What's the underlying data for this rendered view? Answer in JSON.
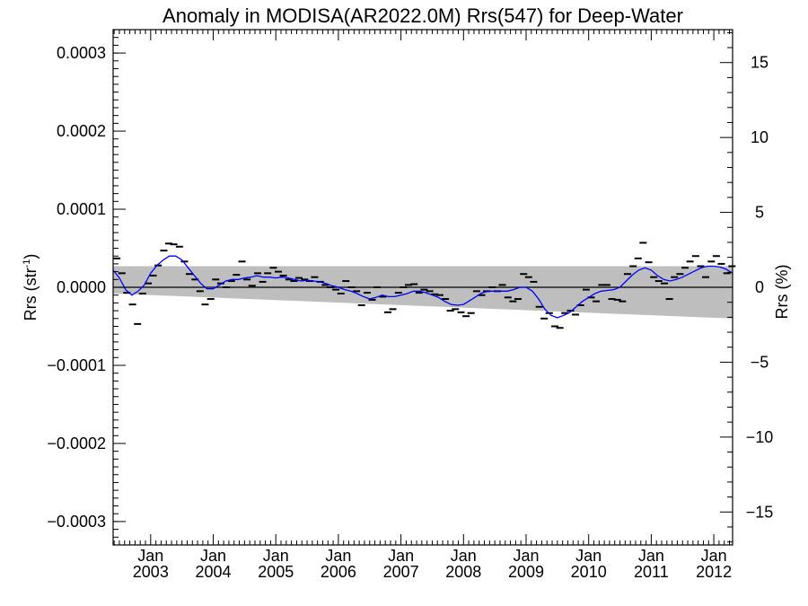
{
  "chart_data": {
    "type": "scatter",
    "title": "Anomaly in MODISA(AR2022.0M) Rrs(547) for Deep-Water",
    "ylabel_left": "Rrs (str",
    "ylabel_left_exp": "-1",
    "ylabel_left_end": ")",
    "ylabel_right": "Rrs (%)",
    "xlabel": "",
    "x_unit": "decimal year",
    "xlim": [
      2002.4,
      2012.3
    ],
    "ylim": [
      -0.00033,
      0.00033
    ],
    "ylim_right": [
      -17.2,
      17.2
    ],
    "grid": false,
    "x_ticks": [
      {
        "x": 2003.0,
        "month": "Jan",
        "year": "2003"
      },
      {
        "x": 2004.0,
        "month": "Jan",
        "year": "2004"
      },
      {
        "x": 2005.0,
        "month": "Jan",
        "year": "2005"
      },
      {
        "x": 2006.0,
        "month": "Jan",
        "year": "2006"
      },
      {
        "x": 2007.0,
        "month": "Jan",
        "year": "2007"
      },
      {
        "x": 2008.0,
        "month": "Jan",
        "year": "2008"
      },
      {
        "x": 2009.0,
        "month": "Jan",
        "year": "2009"
      },
      {
        "x": 2010.0,
        "month": "Jan",
        "year": "2010"
      },
      {
        "x": 2011.0,
        "month": "Jan",
        "year": "2011"
      },
      {
        "x": 2012.0,
        "month": "Jan",
        "year": "2012"
      }
    ],
    "y_ticks_left": [
      {
        "v": 0.0003,
        "label": "0.0003"
      },
      {
        "v": 0.0002,
        "label": "0.0002"
      },
      {
        "v": 0.0001,
        "label": "0.0001"
      },
      {
        "v": 0.0,
        "label": "0.0000"
      },
      {
        "v": -0.0001,
        "label": "−0.0001"
      },
      {
        "v": -0.0002,
        "label": "−0.0002"
      },
      {
        "v": -0.0003,
        "label": "−0.0003"
      }
    ],
    "y_ticks_right": [
      {
        "v": 15,
        "label": "15"
      },
      {
        "v": 10,
        "label": "10"
      },
      {
        "v": 5,
        "label": "5"
      },
      {
        "v": 0,
        "label": "0"
      },
      {
        "v": -5,
        "label": "−5"
      },
      {
        "v": -10,
        "label": "−10"
      },
      {
        "v": -15,
        "label": "−15"
      }
    ],
    "uncertainty_band": {
      "x": [
        2002.4,
        2012.3
      ],
      "upper": [
        2.7e-05,
        2.7e-05
      ],
      "lower": [
        -8e-06,
        -4e-05
      ]
    },
    "zero_line": 0,
    "series": [
      {
        "kind": "monthly_points",
        "color": "#000000",
        "points": [
          [
            2002.46,
            3.7e-05
          ],
          [
            2002.54,
            1.8e-05
          ],
          [
            2002.62,
            -7e-06
          ],
          [
            2002.71,
            -2.2e-05
          ],
          [
            2002.79,
            -4.7e-05
          ],
          [
            2002.87,
            -8e-06
          ],
          [
            2002.96,
            5e-06
          ],
          [
            2003.04,
            1.5e-05
          ],
          [
            2003.12,
            2.8e-05
          ],
          [
            2003.21,
            4.7e-05
          ],
          [
            2003.29,
            5.6e-05
          ],
          [
            2003.37,
            5.5e-05
          ],
          [
            2003.46,
            5.2e-05
          ],
          [
            2003.54,
            3.3e-05
          ],
          [
            2003.62,
            1.7e-05
          ],
          [
            2003.71,
            1e-05
          ],
          [
            2003.79,
            -5e-06
          ],
          [
            2003.87,
            -2.2e-05
          ],
          [
            2003.96,
            -1.5e-05
          ],
          [
            2004.04,
            1e-05
          ],
          [
            2004.12,
            5e-06
          ],
          [
            2004.21,
            0.0
          ],
          [
            2004.29,
            8e-06
          ],
          [
            2004.37,
            1.6e-05
          ],
          [
            2004.46,
            3.3e-05
          ],
          [
            2004.54,
            1e-05
          ],
          [
            2004.62,
            2e-06
          ],
          [
            2004.71,
            1.8e-05
          ],
          [
            2004.79,
            7e-06
          ],
          [
            2004.87,
            1.8e-05
          ],
          [
            2004.96,
            2.5e-05
          ],
          [
            2005.04,
            2e-05
          ],
          [
            2005.12,
            1.5e-05
          ],
          [
            2005.21,
            1e-05
          ],
          [
            2005.29,
            8e-06
          ],
          [
            2005.37,
            1.2e-05
          ],
          [
            2005.46,
            1e-05
          ],
          [
            2005.54,
            8e-06
          ],
          [
            2005.62,
            1.3e-05
          ],
          [
            2005.71,
            7e-06
          ],
          [
            2005.79,
            3e-06
          ],
          [
            2005.87,
            0.0
          ],
          [
            2005.96,
            -3e-06
          ],
          [
            2006.04,
            -8e-06
          ],
          [
            2006.12,
            8e-06
          ],
          [
            2006.21,
            0.0
          ],
          [
            2006.29,
            -5e-06
          ],
          [
            2006.37,
            -2.3e-05
          ],
          [
            2006.46,
            -7e-06
          ],
          [
            2006.54,
            -1.6e-05
          ],
          [
            2006.62,
            0.0
          ],
          [
            2006.71,
            -1.2e-05
          ],
          [
            2006.79,
            -3.2e-05
          ],
          [
            2006.87,
            -2.8e-05
          ],
          [
            2006.96,
            -7e-06
          ],
          [
            2007.04,
            0.0
          ],
          [
            2007.12,
            3e-06
          ],
          [
            2007.21,
            4e-06
          ],
          [
            2007.29,
            -7e-06
          ],
          [
            2007.37,
            -3e-06
          ],
          [
            2007.46,
            -5e-06
          ],
          [
            2007.54,
            -9e-06
          ],
          [
            2007.62,
            -1e-05
          ],
          [
            2007.71,
            -1.5e-05
          ],
          [
            2007.79,
            -3e-05
          ],
          [
            2007.87,
            -2.8e-05
          ],
          [
            2007.96,
            -3.2e-05
          ],
          [
            2008.04,
            -3.7e-05
          ],
          [
            2008.12,
            -3.3e-05
          ],
          [
            2008.21,
            -5e-06
          ],
          [
            2008.29,
            -1e-05
          ],
          [
            2008.37,
            -5e-06
          ],
          [
            2008.46,
            0.0
          ],
          [
            2008.54,
            -5e-06
          ],
          [
            2008.62,
            3e-06
          ],
          [
            2008.71,
            -1.3e-05
          ],
          [
            2008.79,
            -1.8e-05
          ],
          [
            2008.87,
            -1.5e-05
          ],
          [
            2008.96,
            1.7e-05
          ],
          [
            2009.04,
            1.3e-05
          ],
          [
            2009.12,
            7e-06
          ],
          [
            2009.21,
            -2.5e-05
          ],
          [
            2009.29,
            -4e-05
          ],
          [
            2009.37,
            -3.3e-05
          ],
          [
            2009.46,
            -5e-05
          ],
          [
            2009.54,
            -5.2e-05
          ],
          [
            2009.62,
            -3.3e-05
          ],
          [
            2009.71,
            -3e-05
          ],
          [
            2009.79,
            -3.5e-05
          ],
          [
            2009.87,
            -2.3e-05
          ],
          [
            2009.96,
            -3e-06
          ],
          [
            2010.04,
            -1.3e-05
          ],
          [
            2010.12,
            -1.8e-05
          ],
          [
            2010.21,
            3e-06
          ],
          [
            2010.29,
            3e-06
          ],
          [
            2010.37,
            -1.5e-05
          ],
          [
            2010.46,
            -1.6e-05
          ],
          [
            2010.54,
            -1.8e-05
          ],
          [
            2010.62,
            1.7e-05
          ],
          [
            2010.71,
            2.7e-05
          ],
          [
            2010.79,
            3.7e-05
          ],
          [
            2010.87,
            5.7e-05
          ],
          [
            2010.96,
            3.2e-05
          ],
          [
            2011.04,
            1.3e-05
          ],
          [
            2011.12,
            8e-06
          ],
          [
            2011.21,
            5e-06
          ],
          [
            2011.29,
            -1.5e-05
          ],
          [
            2011.37,
            1.3e-05
          ],
          [
            2011.46,
            1.7e-05
          ],
          [
            2011.54,
            2.5e-05
          ],
          [
            2011.62,
            3.3e-05
          ],
          [
            2011.71,
            4e-05
          ],
          [
            2011.79,
            2.7e-05
          ],
          [
            2011.87,
            1.3e-05
          ],
          [
            2011.96,
            3.3e-05
          ],
          [
            2012.04,
            4e-05
          ],
          [
            2012.12,
            3e-05
          ],
          [
            2012.21,
            1.8e-05
          ],
          [
            2012.29,
            2.7e-05
          ]
        ]
      },
      {
        "kind": "smoothed",
        "color": "#0000ff",
        "points": [
          [
            2002.4,
            2.2e-05
          ],
          [
            2002.5,
            1.2e-05
          ],
          [
            2002.6,
            -3e-06
          ],
          [
            2002.7,
            -1e-05
          ],
          [
            2002.8,
            -5e-06
          ],
          [
            2002.9,
            3e-06
          ],
          [
            2003.0,
            1.8e-05
          ],
          [
            2003.1,
            2.8e-05
          ],
          [
            2003.2,
            3.5e-05
          ],
          [
            2003.3,
            4e-05
          ],
          [
            2003.4,
            4e-05
          ],
          [
            2003.5,
            3.5e-05
          ],
          [
            2003.6,
            2.5e-05
          ],
          [
            2003.7,
            1.5e-05
          ],
          [
            2003.8,
            5e-06
          ],
          [
            2003.9,
            -2e-06
          ],
          [
            2004.0,
            -2e-06
          ],
          [
            2004.1,
            3e-06
          ],
          [
            2004.2,
            8e-06
          ],
          [
            2004.3,
            1e-05
          ],
          [
            2004.4,
            1e-05
          ],
          [
            2004.5,
            1.2e-05
          ],
          [
            2004.6,
            1.3e-05
          ],
          [
            2004.7,
            1.5e-05
          ],
          [
            2004.8,
            1.3e-05
          ],
          [
            2004.9,
            1.3e-05
          ],
          [
            2005.0,
            1.2e-05
          ],
          [
            2005.1,
            1.3e-05
          ],
          [
            2005.2,
            1.2e-05
          ],
          [
            2005.3,
            1e-05
          ],
          [
            2005.4,
            8e-06
          ],
          [
            2005.5,
            9e-06
          ],
          [
            2005.6,
            8e-06
          ],
          [
            2005.7,
            7e-06
          ],
          [
            2005.8,
            5e-06
          ],
          [
            2005.9,
            2e-06
          ],
          [
            2006.0,
            0.0
          ],
          [
            2006.1,
            -3e-06
          ],
          [
            2006.2,
            -5e-06
          ],
          [
            2006.3,
            -8e-06
          ],
          [
            2006.4,
            -1.2e-05
          ],
          [
            2006.5,
            -1.5e-05
          ],
          [
            2006.6,
            -1.3e-05
          ],
          [
            2006.7,
            -1e-05
          ],
          [
            2006.8,
            -1.2e-05
          ],
          [
            2006.9,
            -1.2e-05
          ],
          [
            2007.0,
            -1e-05
          ],
          [
            2007.1,
            -8e-06
          ],
          [
            2007.2,
            -5e-06
          ],
          [
            2007.3,
            -5e-06
          ],
          [
            2007.4,
            -7e-06
          ],
          [
            2007.5,
            -1e-05
          ],
          [
            2007.6,
            -1.3e-05
          ],
          [
            2007.7,
            -1.8e-05
          ],
          [
            2007.8,
            -2.2e-05
          ],
          [
            2007.9,
            -2.3e-05
          ],
          [
            2008.0,
            -2.2e-05
          ],
          [
            2008.1,
            -1.7e-05
          ],
          [
            2008.2,
            -1.2e-05
          ],
          [
            2008.3,
            -7e-06
          ],
          [
            2008.4,
            -5e-06
          ],
          [
            2008.5,
            -5e-06
          ],
          [
            2008.6,
            -5e-06
          ],
          [
            2008.7,
            -5e-06
          ],
          [
            2008.8,
            -3e-06
          ],
          [
            2008.9,
            0.0
          ],
          [
            2009.0,
            0.0
          ],
          [
            2009.1,
            -5e-06
          ],
          [
            2009.2,
            -1.5e-05
          ],
          [
            2009.3,
            -2.8e-05
          ],
          [
            2009.4,
            -3.6e-05
          ],
          [
            2009.5,
            -3.9e-05
          ],
          [
            2009.6,
            -3.6e-05
          ],
          [
            2009.7,
            -3.2e-05
          ],
          [
            2009.8,
            -2.5e-05
          ],
          [
            2009.9,
            -1.8e-05
          ],
          [
            2010.0,
            -1.3e-05
          ],
          [
            2010.1,
            -8e-06
          ],
          [
            2010.2,
            -5e-06
          ],
          [
            2010.3,
            -4e-06
          ],
          [
            2010.4,
            -3e-06
          ],
          [
            2010.5,
            0.0
          ],
          [
            2010.6,
            8e-06
          ],
          [
            2010.7,
            1.6e-05
          ],
          [
            2010.8,
            2.2e-05
          ],
          [
            2010.9,
            2.5e-05
          ],
          [
            2011.0,
            2.2e-05
          ],
          [
            2011.1,
            1.5e-05
          ],
          [
            2011.2,
            1e-05
          ],
          [
            2011.3,
            8e-06
          ],
          [
            2011.4,
            1e-05
          ],
          [
            2011.5,
            1.3e-05
          ],
          [
            2011.6,
            1.7e-05
          ],
          [
            2011.7,
            2.1e-05
          ],
          [
            2011.8,
            2.5e-05
          ],
          [
            2011.9,
            2.7e-05
          ],
          [
            2012.0,
            2.7e-05
          ],
          [
            2012.1,
            2.6e-05
          ],
          [
            2012.2,
            2.3e-05
          ],
          [
            2012.3,
            1.8e-05
          ]
        ]
      }
    ]
  }
}
